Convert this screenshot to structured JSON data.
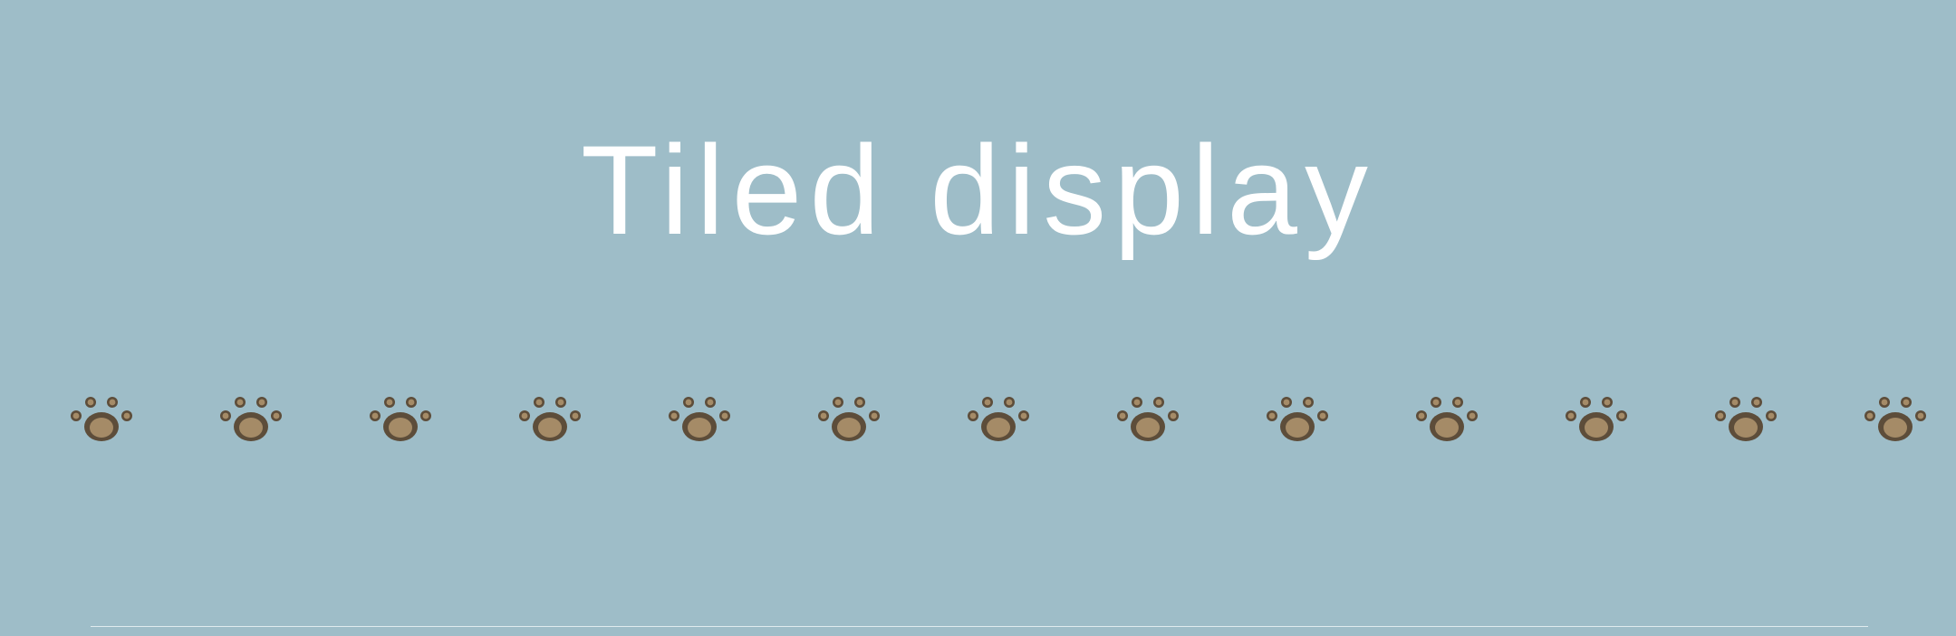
{
  "title": "Tiled display",
  "colors": {
    "background": "#9ebdc8",
    "title": "#ffffff",
    "paw_outer": "#5d4d3a",
    "paw_inner": "#a58b67",
    "divider": "#e7f0f3"
  },
  "paw_row": {
    "icon": "paw-print-icon",
    "count": 13
  }
}
